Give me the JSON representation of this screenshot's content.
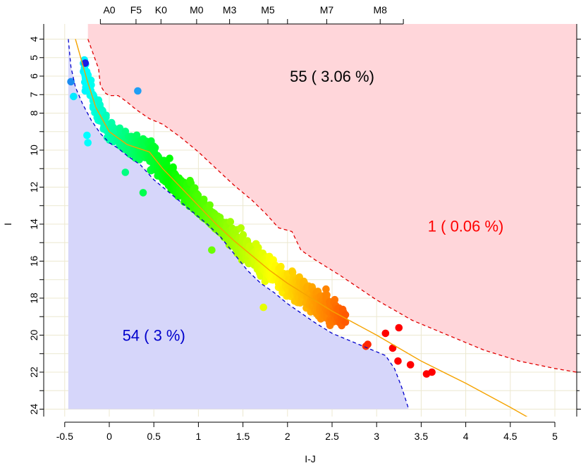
{
  "chart_data": {
    "type": "scatter",
    "xlabel": "I-J",
    "ylabel": "I",
    "xlim": [
      -0.5,
      5.3
    ],
    "ylim": [
      24,
      4
    ],
    "y_inverted": true,
    "grid": true,
    "x_ticks": [
      -0.5,
      0,
      0.5,
      1,
      1.5,
      2,
      2.5,
      3,
      3.5,
      4,
      4.5,
      5
    ],
    "x_tick_labels": [
      "-0.5",
      "0",
      "0.5",
      "1",
      "1.5",
      "2",
      "2.5",
      "3",
      "3.5",
      "4",
      "4.5",
      "5"
    ],
    "y_ticks": [
      4,
      6,
      8,
      10,
      12,
      14,
      16,
      18,
      20,
      22,
      24
    ],
    "y_labeled_ticks": [
      4,
      5,
      6,
      7,
      8,
      10,
      12,
      14,
      16,
      18,
      20,
      22,
      24
    ],
    "y_tick_labels": [
      "4",
      "5",
      "6",
      "7",
      "8",
      "10",
      "12",
      "14",
      "16",
      "18",
      "20",
      "22",
      "24"
    ],
    "spectral_types": [
      {
        "label": "A0",
        "x": 0.0
      },
      {
        "label": "F5",
        "x": 0.3
      },
      {
        "label": "K0",
        "x": 0.58
      },
      {
        "label": "M0",
        "x": 0.98
      },
      {
        "label": "M3",
        "x": 1.35
      },
      {
        "label": "M5",
        "x": 1.78
      },
      {
        "label": "M7",
        "x": 2.44
      },
      {
        "label": "M8",
        "x": 3.04
      }
    ],
    "spectral_tick_x": [
      -0.1,
      0.3,
      0.58,
      0.98,
      1.35,
      1.78,
      2.0,
      2.44,
      3.04,
      3.3
    ],
    "colors": {
      "upper_region": "#ffd6da",
      "lower_region": "#d6d6fa",
      "upper_boundary": "#e00000",
      "lower_boundary": "#0000cc",
      "sequence": "#f5a300",
      "upper_annotation": "#000000",
      "right_annotation": "#ff0000",
      "lower_annotation": "#0000cc",
      "grid": "#ece8d0"
    },
    "annotations": [
      {
        "text": "55 ( 3.06 %)",
        "x": 2.5,
        "y": 6.0,
        "color": "#000000"
      },
      {
        "text": "1 ( 0.06 %)",
        "x": 4.0,
        "y": 14.1,
        "color": "#ff0000"
      },
      {
        "text": "54 ( 3 %)",
        "x": 0.5,
        "y": 20.0,
        "color": "#0000cc"
      }
    ],
    "sequence_line": [
      [
        -0.38,
        4.0
      ],
      [
        -0.25,
        6.2
      ],
      [
        -0.15,
        7.7
      ],
      [
        0.0,
        9.0
      ],
      [
        0.2,
        9.7
      ],
      [
        0.45,
        10.1
      ],
      [
        0.6,
        11.0
      ],
      [
        0.8,
        12.0
      ],
      [
        1.0,
        13.0
      ],
      [
        1.2,
        14.0
      ],
      [
        1.4,
        14.9
      ],
      [
        1.6,
        15.7
      ],
      [
        1.8,
        16.5
      ],
      [
        2.0,
        17.2
      ],
      [
        2.2,
        17.8
      ],
      [
        2.5,
        18.7
      ],
      [
        3.0,
        20.0
      ],
      [
        3.5,
        21.4
      ],
      [
        4.0,
        22.6
      ],
      [
        4.5,
        23.9
      ],
      [
        4.83,
        24.8
      ]
    ],
    "upper_boundary": [
      [
        -0.24,
        4.0
      ],
      [
        -0.12,
        5.6
      ],
      [
        -0.1,
        6.5
      ],
      [
        -0.05,
        6.9
      ],
      [
        0.0,
        7.05
      ],
      [
        0.1,
        7.05
      ],
      [
        0.2,
        7.4
      ],
      [
        0.3,
        7.8
      ],
      [
        0.45,
        8.3
      ],
      [
        0.6,
        8.6
      ],
      [
        0.8,
        9.3
      ],
      [
        1.0,
        10.1
      ],
      [
        1.2,
        11.0
      ],
      [
        1.4,
        11.9
      ],
      [
        1.6,
        12.7
      ],
      [
        1.75,
        13.4
      ],
      [
        1.9,
        14.2
      ],
      [
        2.05,
        14.4
      ],
      [
        2.15,
        15.4
      ],
      [
        2.3,
        15.9
      ],
      [
        2.6,
        16.8
      ],
      [
        3.0,
        18.1
      ],
      [
        3.4,
        19.2
      ],
      [
        3.8,
        20.0
      ],
      [
        4.2,
        20.8
      ],
      [
        4.6,
        21.4
      ],
      [
        5.0,
        21.8
      ],
      [
        5.3,
        22.05
      ]
    ],
    "lower_boundary": [
      [
        -0.46,
        4.0
      ],
      [
        -0.43,
        5.5
      ],
      [
        -0.38,
        6.6
      ],
      [
        -0.3,
        7.5
      ],
      [
        -0.2,
        8.4
      ],
      [
        -0.1,
        9.1
      ],
      [
        0.0,
        9.6
      ],
      [
        0.1,
        9.9
      ],
      [
        0.2,
        10.3
      ],
      [
        0.35,
        10.8
      ],
      [
        0.5,
        11.6
      ],
      [
        0.7,
        12.4
      ],
      [
        0.9,
        13.2
      ],
      [
        1.1,
        14.0
      ],
      [
        1.25,
        14.7
      ],
      [
        1.4,
        15.6
      ],
      [
        1.55,
        16.5
      ],
      [
        1.7,
        17.2
      ],
      [
        1.85,
        17.7
      ],
      [
        2.0,
        18.3
      ],
      [
        2.15,
        18.8
      ],
      [
        2.3,
        19.3
      ],
      [
        2.5,
        19.9
      ],
      [
        2.7,
        20.3
      ],
      [
        2.9,
        20.7
      ],
      [
        3.1,
        21.1
      ],
      [
        3.2,
        21.8
      ],
      [
        3.28,
        22.8
      ],
      [
        3.36,
        24.0
      ]
    ],
    "lower_region_left_x": -0.46,
    "lower_region_bottom_y": 24.0,
    "highlighted_points": [
      {
        "x": -0.27,
        "y": 5.3,
        "color": "#1a1ae6"
      },
      {
        "x": -0.43,
        "y": 6.3,
        "color": "#1c8cf0"
      },
      {
        "x": 0.32,
        "y": 6.8,
        "color": "#1f9ff5"
      }
    ],
    "scatter_generation": {
      "n_points": 1500,
      "seed": 20240601,
      "x_range": [
        -0.5,
        3.65
      ],
      "scatter_sigma": 0.32,
      "color_hue_range": [
        185,
        0
      ],
      "point_radius": 5.3
    },
    "points": [
      [
        -0.4,
        7.1
      ],
      [
        -0.27,
        6.8
      ],
      [
        -0.22,
        6.7
      ],
      [
        -0.2,
        7.0
      ],
      [
        -0.12,
        7.3
      ],
      [
        -0.18,
        7.6
      ],
      [
        -0.1,
        7.9
      ],
      [
        -0.25,
        9.2
      ],
      [
        -0.24,
        9.6
      ],
      [
        0.18,
        11.2
      ],
      [
        0.38,
        12.3
      ],
      [
        1.15,
        15.4
      ],
      [
        1.73,
        18.5
      ],
      [
        2.65,
        18.9
      ],
      [
        2.65,
        19.3
      ],
      [
        3.1,
        19.9
      ],
      [
        3.25,
        19.6
      ],
      [
        2.88,
        20.6
      ],
      [
        2.9,
        20.5
      ],
      [
        3.18,
        20.7
      ],
      [
        3.24,
        21.4
      ],
      [
        3.38,
        21.6
      ],
      [
        3.56,
        22.1
      ],
      [
        3.62,
        22.0
      ]
    ]
  }
}
